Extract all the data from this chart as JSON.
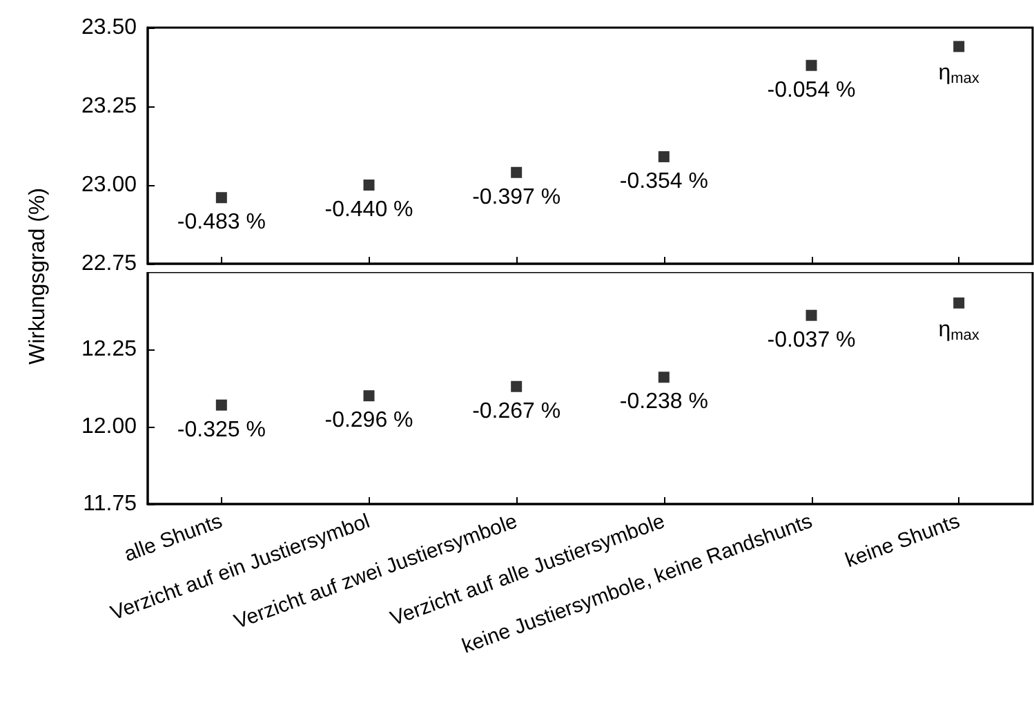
{
  "chart_data": [
    {
      "type": "scatter",
      "ylabel": "Wirkungsgrad (%)",
      "categories": [
        "alle Shunts",
        "Verzicht auf ein Justiersymbol",
        "Verzicht auf zwei Justiersymbole",
        "Verzicht auf alle Justiersymbole",
        "keine Justiersymbole, keine Randshunts",
        "keine Shunts"
      ],
      "series": [
        {
          "color": "#000000",
          "values": [
            22.96,
            23.0,
            23.04,
            23.09,
            23.38,
            23.44
          ]
        }
      ],
      "ylim": [
        22.75,
        23.5
      ],
      "yticks": [
        {
          "value": 22.75,
          "label": "22.75"
        },
        {
          "value": 23,
          "label": "23.00"
        },
        {
          "value": 23.25,
          "label": "23.25"
        },
        {
          "value": 23.5,
          "label": "23.50"
        }
      ],
      "tick_labels": "y",
      "marker": "square",
      "annotations": [
        {
          "text": "-0.483 %",
          "x": "alle Shunts",
          "y": 22.96
        },
        {
          "text": "-0.440 %",
          "x": "Verzicht auf ein Justiersymbol",
          "y": 23.0
        },
        {
          "text": "-0.397 %",
          "x": "Verzicht auf zwei Justiersymbole",
          "y": 23.04
        },
        {
          "text": "-0.354 %",
          "x": "Verzicht auf alle Justiersymbole",
          "y": 23.09
        },
        {
          "text": "-0.054 %",
          "x": "keine Justiersymbole, keine Randshunts",
          "y": 23.38
        },
        {
          "text": "η$_{max}$",
          "x": "keine Shunts",
          "y": 23.44
        }
      ]
    },
    {
      "type": "scatter",
      "categories": [
        "alle Shunts",
        "Verzicht auf ein Justiersymbol",
        "Verzicht auf zwei Justiersymbole",
        "Verzicht auf alle Justiersymbole",
        "keine Justiersymbole, keine Randshunts",
        "keine Shunts"
      ],
      "series": [
        {
          "color": "#000000",
          "values": [
            12.07,
            12.1,
            12.13,
            12.16,
            12.36,
            12.4
          ]
        }
      ],
      "ylim": [
        11.75,
        12.5
      ],
      "yticks": [
        {
          "value": 11.75,
          "label": "11.75"
        },
        {
          "value": 12,
          "label": "12.00"
        },
        {
          "value": 12.25,
          "label": "12.25"
        }
      ],
      "marker": "square",
      "annotations": [
        {
          "text": "-0.325 %",
          "x": "alle Shunts",
          "y": 12.07
        },
        {
          "text": "-0.296 %",
          "x": "Verzicht auf ein Justiersymbol",
          "y": 12.1
        },
        {
          "text": "-0.267 %",
          "x": "Verzicht auf zwei Justiersymbole",
          "y": 12.13
        },
        {
          "text": "-0.238 %",
          "x": "Verzicht auf alle Justiersymbole",
          "y": 12.16
        },
        {
          "text": "-0.037 %",
          "x": "keine Justiersymbole, keine Randshunts",
          "y": 12.36
        },
        {
          "text": "η$_{max}$",
          "x": "keine Shunts",
          "y": 12.4
        }
      ]
    }
  ]
}
